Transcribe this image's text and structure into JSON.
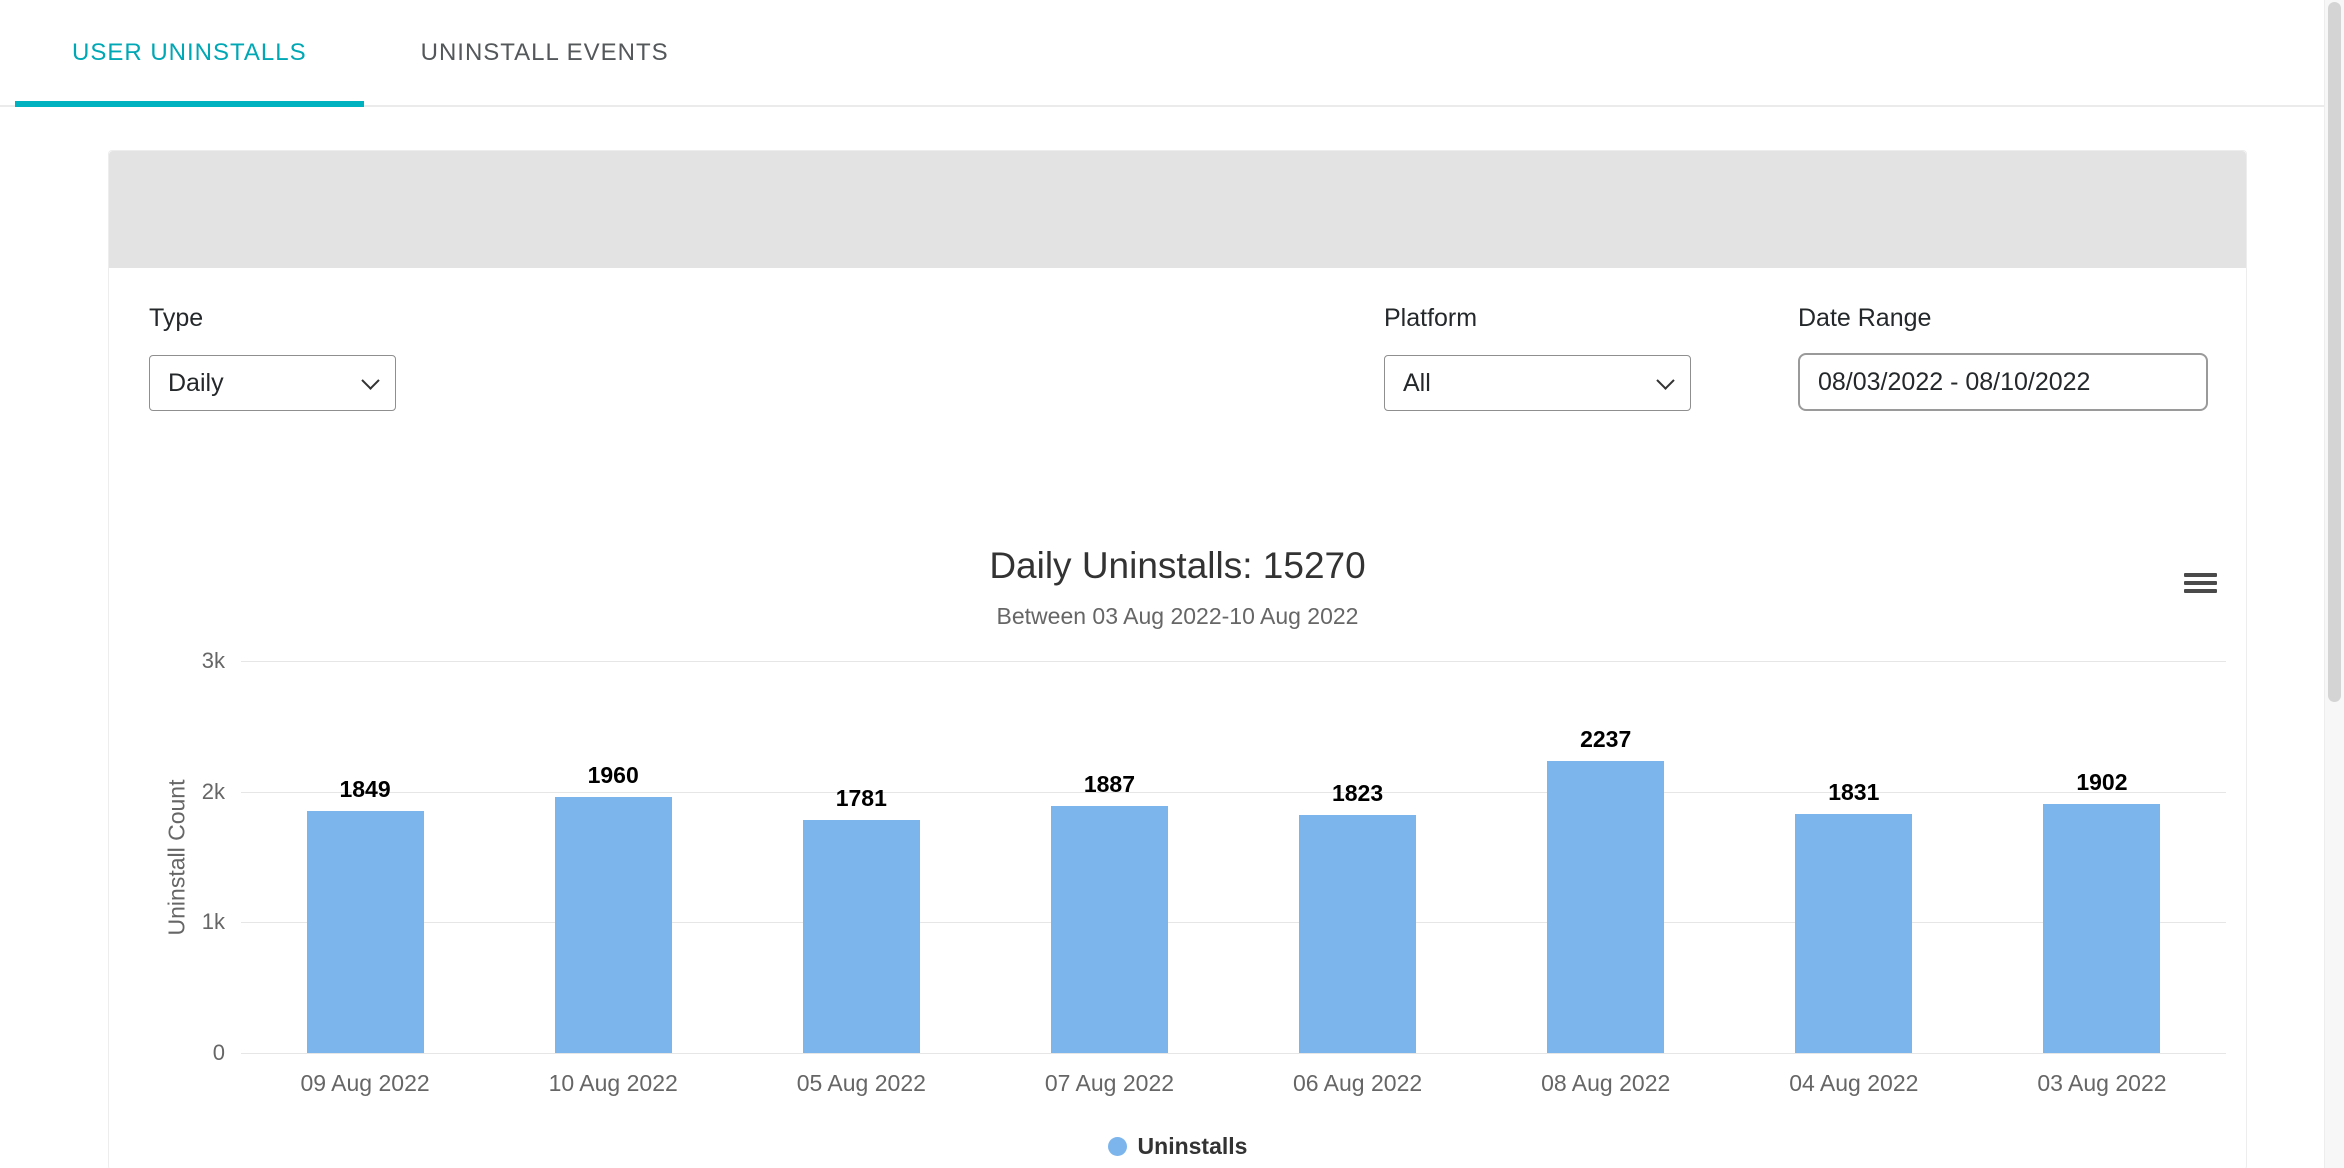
{
  "tabs": [
    {
      "label": "USER UNINSTALLS",
      "active": true
    },
    {
      "label": "UNINSTALL EVENTS",
      "active": false
    }
  ],
  "filters": {
    "type": {
      "label": "Type",
      "value": "Daily"
    },
    "platform": {
      "label": "Platform",
      "value": "All"
    },
    "date_range": {
      "label": "Date Range",
      "value": "08/03/2022 - 08/10/2022"
    }
  },
  "chart_data": {
    "type": "bar",
    "title": "Daily Uninstalls: 15270",
    "subtitle": "Between 03 Aug 2022-10 Aug 2022",
    "ylabel": "Uninstall Count",
    "categories": [
      "09 Aug 2022",
      "10 Aug 2022",
      "05 Aug 2022",
      "07 Aug 2022",
      "06 Aug 2022",
      "08 Aug 2022",
      "04 Aug 2022",
      "03 Aug 2022"
    ],
    "values": [
      1849,
      1960,
      1781,
      1887,
      1823,
      2237,
      1831,
      1902
    ],
    "total": 15270,
    "ylim": [
      0,
      3000
    ],
    "yticks": [
      {
        "v": 0,
        "label": "0"
      },
      {
        "v": 1000,
        "label": "1k"
      },
      {
        "v": 2000,
        "label": "2k"
      },
      {
        "v": 3000,
        "label": "3k"
      }
    ],
    "bar_color": "#7cb5ec",
    "grid": true,
    "legend_position": "bottom",
    "legend": [
      {
        "name": "Uninstalls",
        "color": "#7cb5ec"
      }
    ]
  }
}
